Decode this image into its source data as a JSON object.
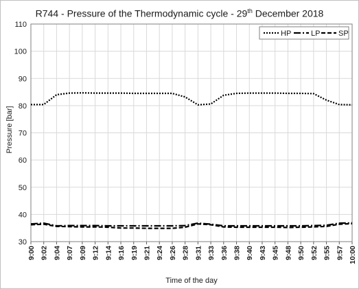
{
  "chart_data": {
    "type": "line",
    "title_main": "R744 - Pressure of the Thermodynamic cycle - 29",
    "title_sup": "th",
    "title_end": " December 2018",
    "xlabel": "Time of the day",
    "ylabel": "Pressure [bar]",
    "ylim": [
      30,
      110
    ],
    "yticks": [
      "30",
      "40",
      "50",
      "60",
      "70",
      "80",
      "90",
      "100",
      "110"
    ],
    "x_tick_labels": [
      "9:00",
      "9:02",
      "9:04",
      "9:07",
      "9:09",
      "9:12",
      "9:14",
      "9:16",
      "9:19",
      "9:21",
      "9:24",
      "9:26",
      "9:28",
      "9:31",
      "9:33",
      "9:36",
      "9:38",
      "9:40",
      "9:43",
      "9:45",
      "9:48",
      "9:50",
      "9:52",
      "9:55",
      "9:57",
      "10:00"
    ],
    "grid": true,
    "legend_position": "top-right",
    "x": [
      0,
      1,
      2,
      3,
      4,
      5,
      6,
      7,
      8,
      9,
      10,
      11,
      12,
      13,
      14,
      15,
      16,
      17,
      18,
      19,
      20,
      21,
      22,
      23,
      24,
      25
    ],
    "series": [
      {
        "name": "HP",
        "dash": "2,2",
        "values": [
          80.4,
          80.4,
          84.0,
          84.6,
          84.7,
          84.6,
          84.6,
          84.6,
          84.5,
          84.5,
          84.5,
          84.5,
          83.2,
          80.3,
          80.6,
          83.8,
          84.5,
          84.6,
          84.6,
          84.6,
          84.5,
          84.5,
          84.4,
          82.0,
          80.4,
          80.3
        ]
      },
      {
        "name": "LP",
        "dash": "10,3,2,3",
        "values": [
          36.5,
          36.8,
          35.8,
          35.9,
          35.9,
          35.9,
          35.8,
          35.8,
          35.8,
          35.8,
          35.8,
          35.8,
          35.9,
          36.8,
          36.4,
          35.8,
          35.8,
          35.8,
          35.8,
          35.8,
          35.8,
          35.8,
          35.9,
          36.0,
          36.8,
          36.9
        ]
      },
      {
        "name": "SP",
        "dash": "6,3",
        "values": [
          36.2,
          36.4,
          35.6,
          35.5,
          35.4,
          35.4,
          35.3,
          35.0,
          35.0,
          34.9,
          34.9,
          34.9,
          35.3,
          36.5,
          36.2,
          35.4,
          35.3,
          35.3,
          35.3,
          35.3,
          35.2,
          35.3,
          35.4,
          35.6,
          36.4,
          36.6
        ]
      }
    ]
  }
}
